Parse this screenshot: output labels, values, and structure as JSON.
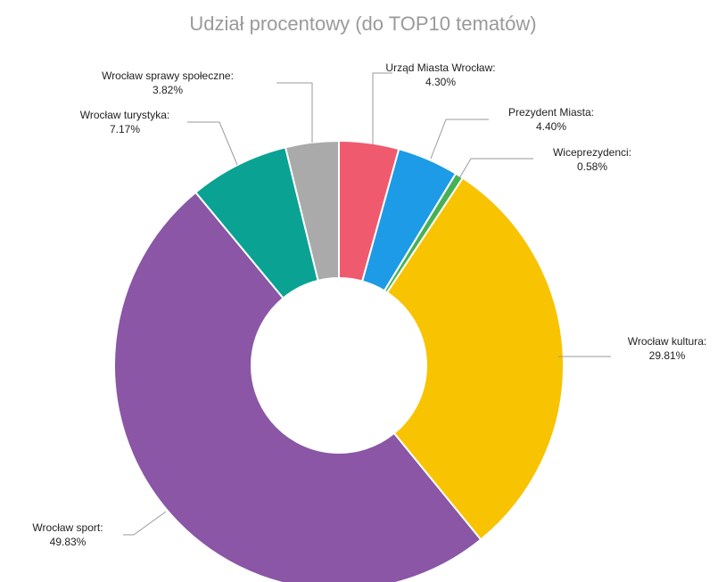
{
  "chart_data": {
    "type": "pie",
    "variant": "donut",
    "title": "Udział procentowy (do TOP10 tematów)",
    "slices": [
      {
        "label": "Urząd Miasta Wrocław:",
        "value": 4.3,
        "display": "4.30%",
        "color": "#f05a6e"
      },
      {
        "label": "Prezydent Miasta:",
        "value": 4.4,
        "display": "4.40%",
        "color": "#1e9be6"
      },
      {
        "label": "Wiceprezydenci:",
        "value": 0.58,
        "display": "0.58%",
        "color": "#47b255"
      },
      {
        "label": "Wrocław kultura:",
        "value": 29.81,
        "display": "29.81%",
        "color": "#f8c300"
      },
      {
        "label": "Wrocław sport:",
        "value": 49.83,
        "display": "49.83%",
        "color": "#8a56a5"
      },
      {
        "label": "Wrocław turystyka:",
        "value": 7.17,
        "display": "7.17%",
        "color": "#0aa293"
      },
      {
        "label": "Wrocław sprawy społeczne:",
        "value": 3.82,
        "display": "3.82%",
        "color": "#aaaaaa"
      }
    ],
    "legend": "none"
  }
}
